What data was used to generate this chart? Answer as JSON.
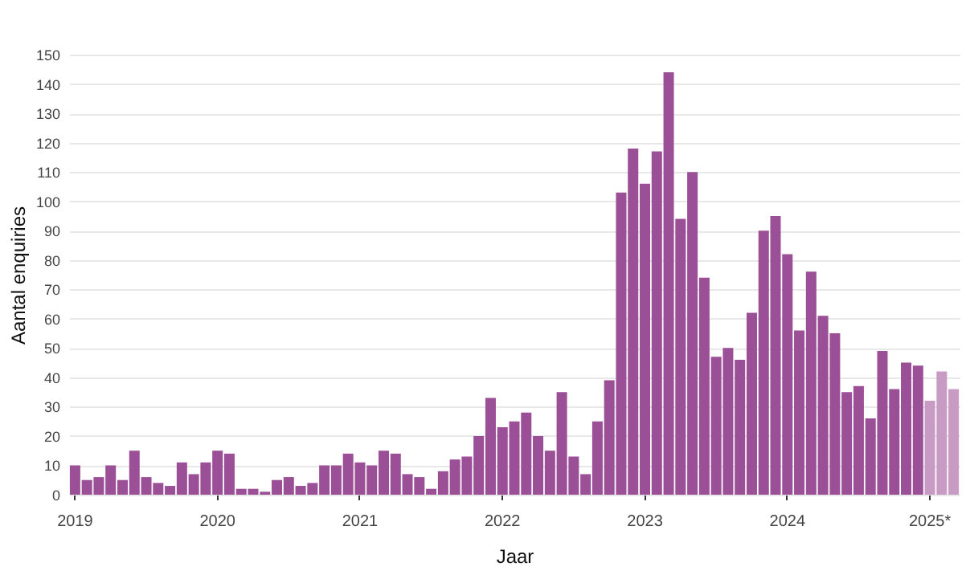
{
  "chart_data": {
    "type": "bar",
    "xlabel": "Jaar",
    "ylabel": "Aantal enquiries",
    "categories": [
      "2019",
      null,
      null,
      null,
      null,
      null,
      null,
      null,
      null,
      null,
      null,
      null,
      "2020",
      null,
      null,
      null,
      null,
      null,
      null,
      null,
      null,
      null,
      null,
      null,
      "2021",
      null,
      null,
      null,
      null,
      null,
      null,
      null,
      null,
      null,
      null,
      null,
      "2022",
      null,
      null,
      null,
      null,
      null,
      null,
      null,
      null,
      null,
      null,
      null,
      "2023",
      null,
      null,
      null,
      null,
      null,
      null,
      null,
      null,
      null,
      null,
      null,
      "2024",
      null,
      null,
      null,
      null,
      null,
      null,
      null,
      null,
      null,
      null,
      null,
      "2025*",
      null,
      null
    ],
    "values": [
      10,
      5,
      6,
      10,
      5,
      15,
      6,
      4,
      3,
      11,
      7,
      11,
      15,
      14,
      2,
      2,
      1,
      5,
      6,
      3,
      4,
      10,
      10,
      14,
      11,
      10,
      15,
      14,
      7,
      6,
      2,
      8,
      12,
      13,
      20,
      33,
      23,
      25,
      28,
      20,
      15,
      35,
      13,
      7,
      25,
      39,
      103,
      118,
      106,
      117,
      144,
      94,
      110,
      74,
      47,
      50,
      46,
      62,
      90,
      95,
      82,
      56,
      76,
      61,
      55,
      35,
      37,
      26,
      49,
      36,
      45,
      44,
      32,
      42,
      36
    ],
    "colors": [
      "#9b4f96",
      "#9b4f96",
      "#9b4f96",
      "#9b4f96",
      "#9b4f96",
      "#9b4f96",
      "#9b4f96",
      "#9b4f96",
      "#9b4f96",
      "#9b4f96",
      "#9b4f96",
      "#9b4f96",
      "#9b4f96",
      "#9b4f96",
      "#9b4f96",
      "#9b4f96",
      "#9b4f96",
      "#9b4f96",
      "#9b4f96",
      "#9b4f96",
      "#9b4f96",
      "#9b4f96",
      "#9b4f96",
      "#9b4f96",
      "#9b4f96",
      "#9b4f96",
      "#9b4f96",
      "#9b4f96",
      "#9b4f96",
      "#9b4f96",
      "#9b4f96",
      "#9b4f96",
      "#9b4f96",
      "#9b4f96",
      "#9b4f96",
      "#9b4f96",
      "#9b4f96",
      "#9b4f96",
      "#9b4f96",
      "#9b4f96",
      "#9b4f96",
      "#9b4f96",
      "#9b4f96",
      "#9b4f96",
      "#9b4f96",
      "#9b4f96",
      "#9b4f96",
      "#9b4f96",
      "#9b4f96",
      "#9b4f96",
      "#9b4f96",
      "#9b4f96",
      "#9b4f96",
      "#9b4f96",
      "#9b4f96",
      "#9b4f96",
      "#9b4f96",
      "#9b4f96",
      "#9b4f96",
      "#9b4f96",
      "#9b4f96",
      "#9b4f96",
      "#9b4f96",
      "#9b4f96",
      "#9b4f96",
      "#9b4f96",
      "#9b4f96",
      "#9b4f96",
      "#9b4f96",
      "#9b4f96",
      "#9b4f96",
      "#9b4f96",
      "#c79bc4",
      "#c79bc4",
      "#c79bc4"
    ],
    "ylim": [
      0,
      150
    ],
    "yticks": [
      0,
      10,
      20,
      30,
      40,
      50,
      60,
      70,
      80,
      90,
      100,
      110,
      120,
      130,
      140,
      150
    ],
    "grid": "y"
  }
}
